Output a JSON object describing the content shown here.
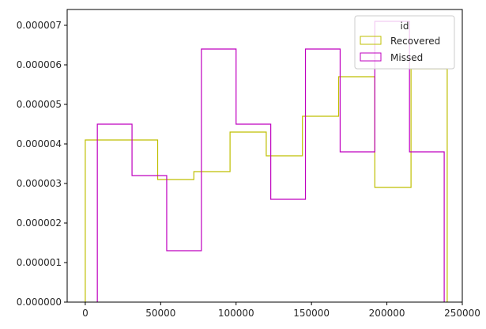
{
  "chart_data": {
    "type": "histogram",
    "title": "",
    "xlabel": "",
    "ylabel": "",
    "xlim": [
      -12000,
      250000
    ],
    "ylim": [
      0,
      7.4e-06
    ],
    "x_ticks": [
      0,
      50000,
      100000,
      150000,
      200000,
      250000
    ],
    "x_tick_labels": [
      "0",
      "50000",
      "100000",
      "150000",
      "200000",
      "250000"
    ],
    "y_ticks": [
      0,
      1e-06,
      2e-06,
      3e-06,
      4e-06,
      5e-06,
      6e-06,
      7e-06
    ],
    "y_tick_labels": [
      "0.000000",
      "0.000001",
      "0.000002",
      "0.000003",
      "0.000004",
      "0.000005",
      "0.000006",
      "0.000007"
    ],
    "grid": false,
    "legend": {
      "title": "id",
      "placement": "top-right",
      "entries": [
        "Recovered",
        "Missed"
      ]
    },
    "series": [
      {
        "name": "Recovered",
        "color": "#bfbf00",
        "bin_edges": [
          0,
          24000,
          48000,
          72000,
          96000,
          120000,
          144000,
          168000,
          192000,
          216000,
          240000
        ],
        "values": [
          4.1e-06,
          4.1e-06,
          3.1e-06,
          3.3e-06,
          4.3e-06,
          3.7e-06,
          4.7e-06,
          5.7e-06,
          2.9e-06,
          5.9e-06
        ]
      },
      {
        "name": "Missed",
        "color": "#bf00bf",
        "bin_edges": [
          8000,
          31000,
          54000,
          77000,
          100000,
          123000,
          146000,
          169000,
          192000,
          215000,
          238000
        ],
        "values": [
          4.5e-06,
          3.2e-06,
          1.3e-06,
          6.4e-06,
          4.5e-06,
          2.6e-06,
          6.4e-06,
          3.8e-06,
          7.1e-06,
          3.8e-06
        ]
      }
    ]
  }
}
